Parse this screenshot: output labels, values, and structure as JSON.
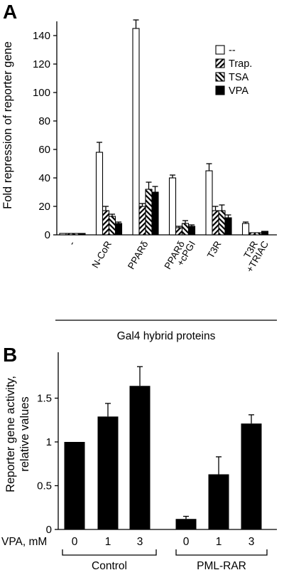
{
  "panels": [
    {
      "letter": "A",
      "chart_data": {
        "type": "bar",
        "ylabel": "Fold repression of reporter gene",
        "xlabel": "Gal4 hybrid proteins",
        "ylim": [
          0,
          150
        ],
        "yticks": [
          0,
          20,
          40,
          60,
          80,
          100,
          120,
          140
        ],
        "categories": [
          {
            "main": "-",
            "sub": ""
          },
          {
            "main": "N-CoR",
            "sub": ""
          },
          {
            "main": "PPARδ",
            "sub": ""
          },
          {
            "main": "PPARδ",
            "sub": "+cPGI"
          },
          {
            "main": "T3R",
            "sub": ""
          },
          {
            "main": "T3R",
            "sub": "+TRIAC"
          }
        ],
        "legend_position": "top-right",
        "series": [
          {
            "name": "--",
            "pattern": "white",
            "values": [
              1,
              58,
              145,
              40,
              45,
              8
            ],
            "errors": [
              0.5,
              7,
              6,
              2,
              5,
              1
            ]
          },
          {
            "name": "Trap.",
            "pattern": "hatch-right",
            "values": [
              1,
              17,
              20,
              5,
              17,
              1.5
            ],
            "errors": [
              0.5,
              3,
              2,
              1,
              3,
              0.5
            ]
          },
          {
            "name": "TSA",
            "pattern": "hatch-left",
            "values": [
              1,
              13,
              32,
              8,
              17,
              1.5
            ],
            "errors": [
              0.5,
              1.5,
              5,
              2,
              4,
              0.5
            ]
          },
          {
            "name": "VPA",
            "pattern": "black",
            "values": [
              1,
              8,
              30,
              6,
              12,
              2.5
            ],
            "errors": [
              0.5,
              1,
              4,
              1,
              2,
              0.5
            ]
          }
        ]
      }
    },
    {
      "letter": "B",
      "chart_data": {
        "type": "bar",
        "ylabel_line1": "Reporter gene activity,",
        "ylabel_line2": "relative values",
        "ylim": [
          0,
          1.9
        ],
        "yticks": [
          "0",
          "0.5",
          "1",
          "1.5"
        ],
        "ytick_values": [
          0,
          0.5,
          1,
          1.5
        ],
        "xrow_label": "VPA, mM",
        "categories": [
          "0",
          "1",
          "3",
          "0",
          "1",
          "3"
        ],
        "values": [
          1.0,
          1.29,
          1.64,
          0.12,
          0.63,
          1.21
        ],
        "errors": [
          0,
          0.15,
          0.22,
          0.03,
          0.2,
          0.1
        ],
        "groups": [
          "Control",
          "PML-RAR"
        ]
      }
    }
  ]
}
